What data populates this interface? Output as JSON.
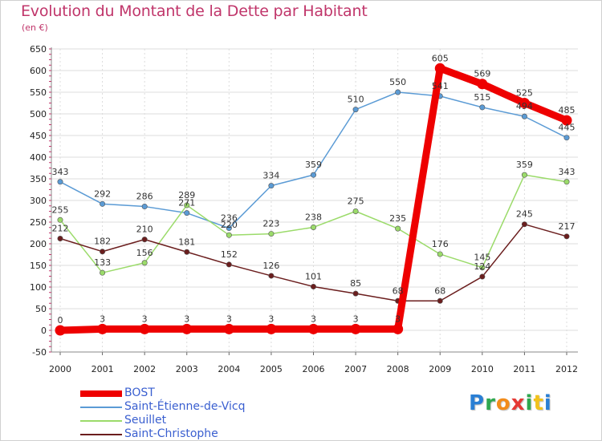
{
  "chart_data": {
    "type": "line",
    "title": "Evolution du Montant de la Dette par Habitant",
    "subtitle": "(en €)",
    "xlabel": "",
    "ylabel": "",
    "x": [
      "2000",
      "2001",
      "2002",
      "2003",
      "2004",
      "2005",
      "2006",
      "2007",
      "2008",
      "2009",
      "2010",
      "2011",
      "2012"
    ],
    "ylim": [
      -50,
      650
    ],
    "yticks": [
      "-50",
      "0",
      "50",
      "100",
      "150",
      "200",
      "250",
      "300",
      "350",
      "400",
      "450",
      "500",
      "550",
      "600",
      "650"
    ],
    "grid": true,
    "legend_position": "bottom-left",
    "series": [
      {
        "name": "BOST",
        "color": "#ee0000",
        "values": [
          0,
          3,
          3,
          3,
          3,
          3,
          3,
          3,
          3,
          605,
          569,
          525,
          485
        ],
        "labels": [
          "0",
          "3",
          "3",
          "3",
          "3",
          "3",
          "3",
          "3",
          "3",
          "605",
          "569",
          "525",
          "485"
        ]
      },
      {
        "name": "Saint-Étienne-de-Vicq",
        "color": "#5b9bd5",
        "values": [
          343,
          292,
          286,
          271,
          236,
          334,
          359,
          510,
          550,
          541,
          515,
          494,
          445
        ],
        "labels": [
          "343",
          "292",
          "286",
          "271",
          "236",
          "334",
          "359",
          "510",
          "550",
          "541",
          "515",
          "494",
          "445"
        ]
      },
      {
        "name": "Seuillet",
        "color": "#9bdb6a",
        "values": [
          255,
          133,
          156,
          289,
          220,
          223,
          238,
          275,
          235,
          176,
          145,
          359,
          343
        ],
        "labels": [
          "255",
          "133",
          "156",
          "289",
          "220",
          "223",
          "238",
          "275",
          "235",
          "176",
          "145",
          "359",
          "343"
        ]
      },
      {
        "name": "Saint-Christophe",
        "color": "#6b1e1e",
        "values": [
          212,
          182,
          210,
          181,
          152,
          126,
          101,
          85,
          68,
          68,
          124,
          245,
          217
        ],
        "labels": [
          "212",
          "182",
          "210",
          "181",
          "152",
          "126",
          "101",
          "85",
          "68",
          "68",
          "124",
          "245",
          "217"
        ]
      }
    ]
  },
  "logo": {
    "letters": [
      {
        "ch": "P",
        "color": "#2a7fd4"
      },
      {
        "ch": "r",
        "color": "#2fa84f"
      },
      {
        "ch": "o",
        "color": "#f28c1b"
      },
      {
        "ch": "x",
        "color": "#e53935"
      },
      {
        "ch": "i",
        "color": "#2fa84f"
      },
      {
        "ch": "t",
        "color": "#f2c21b"
      },
      {
        "ch": "i",
        "color": "#2a7fd4"
      }
    ]
  }
}
